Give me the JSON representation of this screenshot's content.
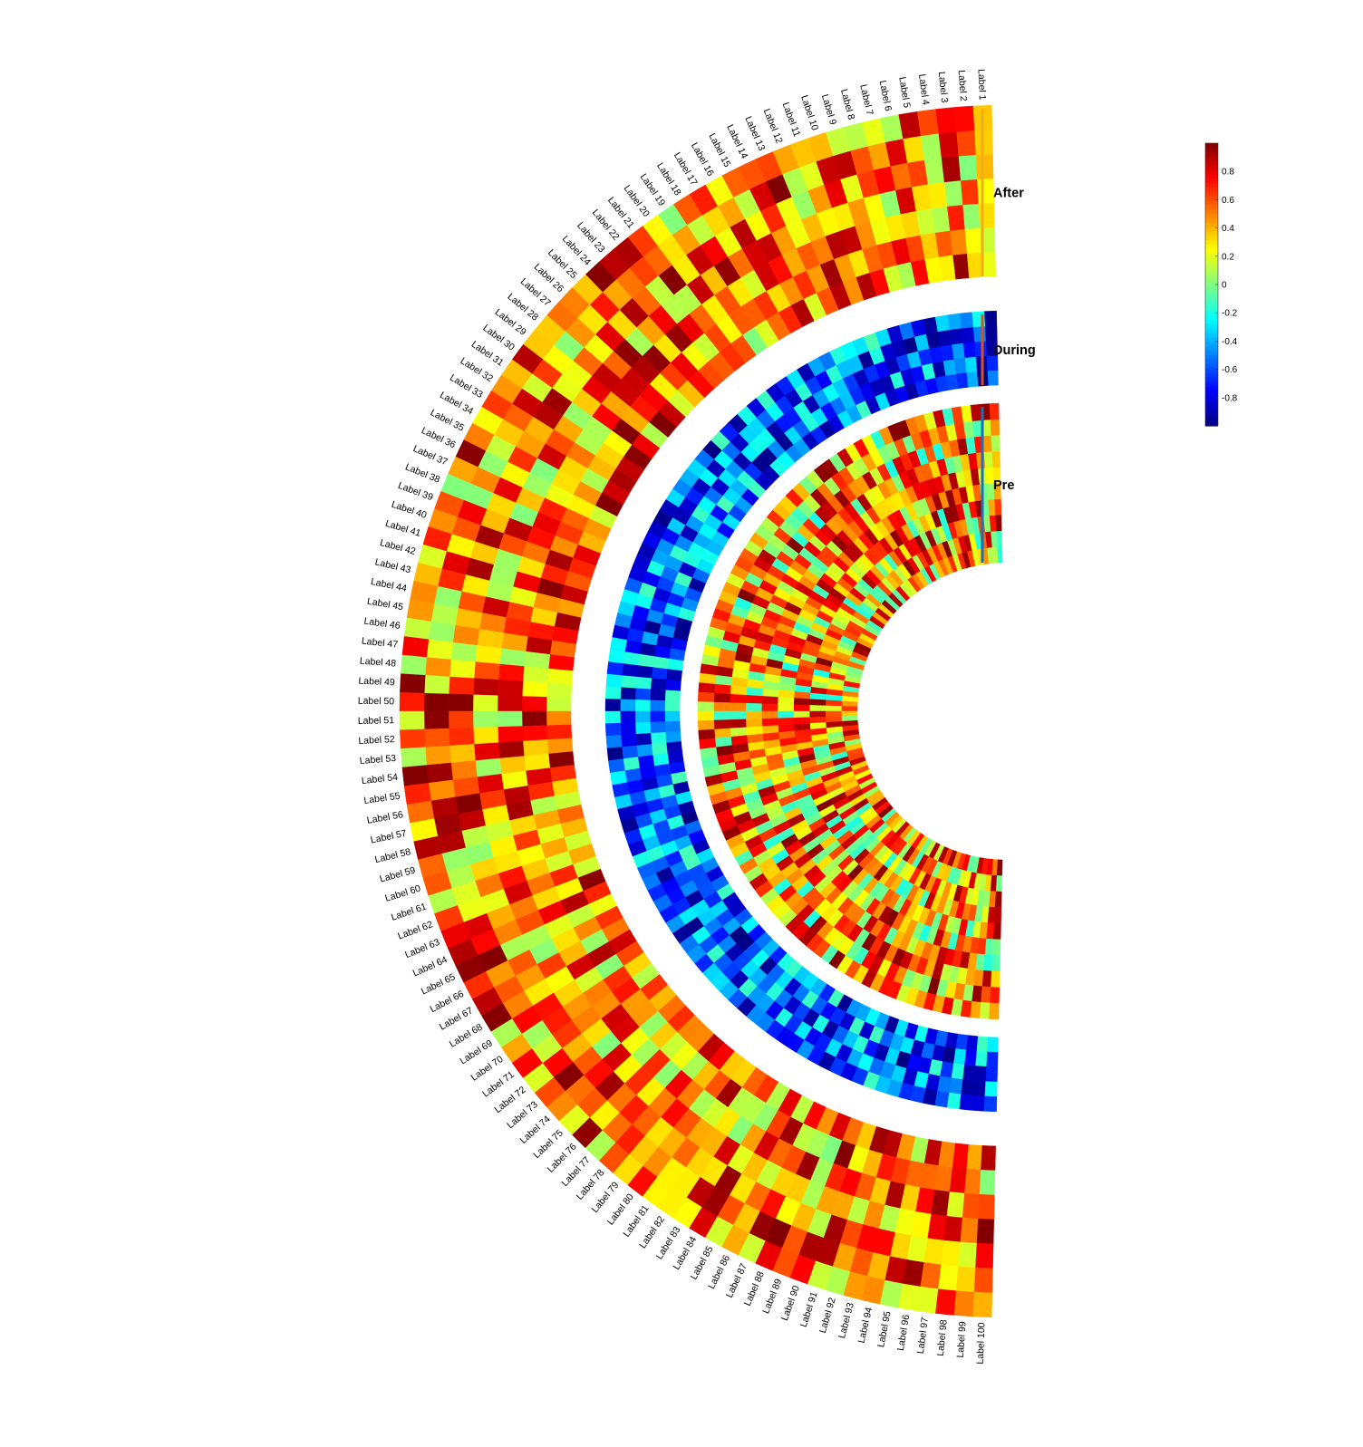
{
  "chart_data": {
    "type": "heatmap",
    "subtype": "circular-heatmap",
    "title": "",
    "labels": [
      "Label 1",
      "Label 2",
      "Label 3",
      "Label 4",
      "Label 5",
      "Label 6",
      "Label 7",
      "Label 8",
      "Label 9",
      "Label 10",
      "Label 11",
      "Label 12",
      "Label 13",
      "Label 14",
      "Label 15",
      "Label 16",
      "Label 17",
      "Label 18",
      "Label 19",
      "Label 20",
      "Label 21",
      "Label 22",
      "Label 23",
      "Label 24",
      "Label 25",
      "Label 26",
      "Label 27",
      "Label 28",
      "Label 29",
      "Label 30",
      "Label 31",
      "Label 32",
      "Label 33",
      "Label 34",
      "Label 35",
      "Label 36",
      "Label 37",
      "Label 38",
      "Label 39",
      "Label 40",
      "Label 41",
      "Label 42",
      "Label 43",
      "Label 44",
      "Label 45",
      "Label 46",
      "Label 47",
      "Label 48",
      "Label 49",
      "Label 50",
      "Label 51",
      "Label 52",
      "Label 53",
      "Label 54",
      "Label 55",
      "Label 56",
      "Label 57",
      "Label 58",
      "Label 59",
      "Label 60",
      "Label 61",
      "Label 62",
      "Label 63",
      "Label 64",
      "Label 65",
      "Label 66",
      "Label 67",
      "Label 68",
      "Label 69",
      "Label 70",
      "Label 71",
      "Label 72",
      "Label 73",
      "Label 74",
      "Label 75",
      "Label 76",
      "Label 77",
      "Label 78",
      "Label 79",
      "Label 80",
      "Label 81",
      "Label 82",
      "Label 83",
      "Label 84",
      "Label 85",
      "Label 86",
      "Label 87",
      "Label 88",
      "Label 89",
      "Label 90",
      "Label 91",
      "Label 92",
      "Label 93",
      "Label 94",
      "Label 95",
      "Label 96",
      "Label 97",
      "Label 98",
      "Label 99",
      "Label 100"
    ],
    "groups": [
      {
        "name": "Pre",
        "rows": 10,
        "value_range": [
          -0.2,
          1.0
        ],
        "color": "#1f6fb4",
        "seed": 7
      },
      {
        "name": "During",
        "rows": 5,
        "value_range": [
          -1.0,
          -0.1
        ],
        "color": "#d9531e",
        "seed": 13
      },
      {
        "name": "After",
        "rows": 7,
        "value_range": [
          0.0,
          1.0
        ],
        "color": "#eeae1a",
        "seed": 29
      }
    ],
    "colorbar": {
      "range": [
        -1,
        1
      ],
      "ticks": [
        -0.8,
        -0.6,
        -0.4,
        -0.2,
        0,
        0.2,
        0.4,
        0.6,
        0.8
      ],
      "tick_labels": [
        "-0.8",
        "-0.6",
        "-0.4",
        "-0.2",
        "0",
        "0.2",
        "0.4",
        "0.6",
        "0.8"
      ],
      "colormap": "jet"
    },
    "angular_span": "left half-circle, Label 1 at top, Label 100 at bottom"
  }
}
